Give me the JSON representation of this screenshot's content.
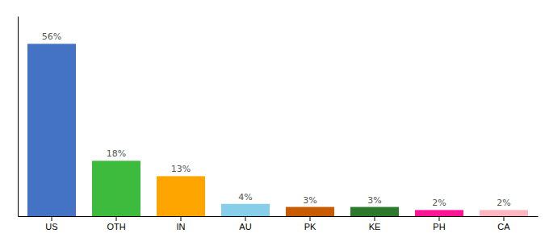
{
  "chart_data": {
    "type": "bar",
    "categories": [
      "US",
      "OTH",
      "IN",
      "AU",
      "PK",
      "KE",
      "PH",
      "CA"
    ],
    "values": [
      56,
      18,
      13,
      4,
      3,
      3,
      2,
      2
    ],
    "value_labels": [
      "56%",
      "18%",
      "13%",
      "4%",
      "3%",
      "3%",
      "2%",
      "2%"
    ],
    "colors": [
      "#4472c4",
      "#3dbb3d",
      "#ffa500",
      "#87ceeb",
      "#c85a00",
      "#2d7a2d",
      "#ff1493",
      "#ffb6c1"
    ],
    "ylim": [
      0,
      65
    ],
    "data_labels": true,
    "tick_labels": "x"
  }
}
